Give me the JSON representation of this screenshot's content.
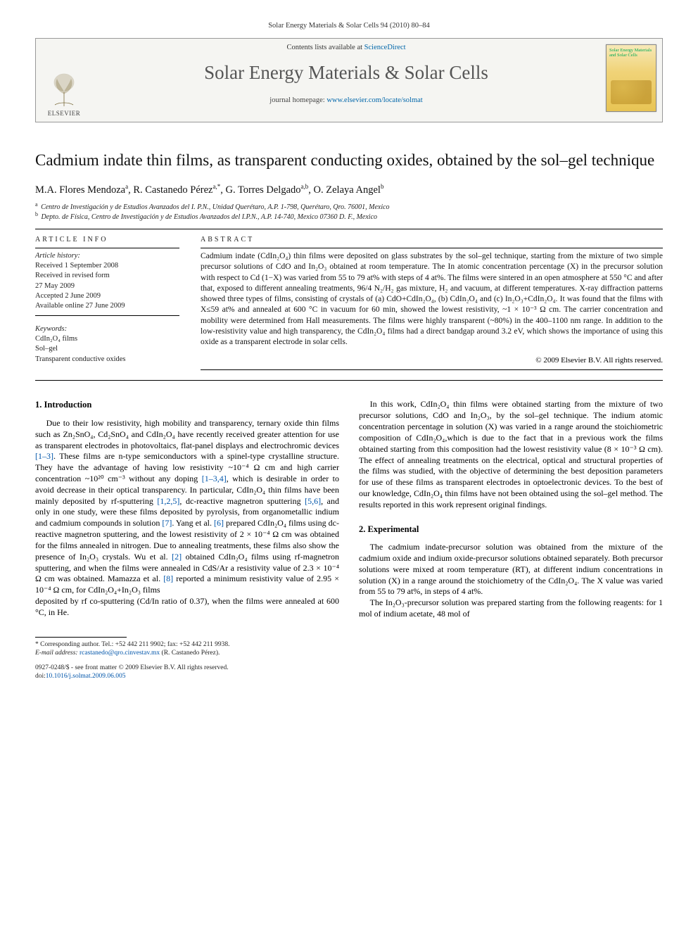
{
  "header": {
    "citation": "Solar Energy Materials & Solar Cells 94 (2010) 80–84",
    "contents_prefix": "Contents lists available at ",
    "contents_link": "ScienceDirect",
    "journal_title": "Solar Energy Materials & Solar Cells",
    "homepage_prefix": "journal homepage: ",
    "homepage_link": "www.elsevier.com/locate/solmat",
    "publisher": "ELSEVIER",
    "cover_text": "Solar Energy Materials and Solar Cells"
  },
  "article": {
    "title": "Cadmium indate thin films, as transparent conducting oxides, obtained by the sol–gel technique",
    "authors_html": "M.A. Flores Mendoza<sup>a</sup>, R. Castanedo Pérez<sup>a,*</sup>, G. Torres Delgado<sup>a,b</sup>, O. Zelaya Angel<sup>b</sup>",
    "affiliations": [
      {
        "sup": "a",
        "text": "Centro de Investigación y de Estudios Avanzados del I. P.N., Unidad Querétaro, A.P. 1-798, Querétaro, Qro. 76001, Mexico"
      },
      {
        "sup": "b",
        "text": "Depto. de Física, Centro de Investigación y de Estudios Avanzados del I.P.N., A.P. 14-740, Mexico 07360 D. F., Mexico"
      }
    ]
  },
  "info": {
    "heading": "ARTICLE INFO",
    "history_label": "Article history:",
    "history": [
      "Received 1 September 2008",
      "Received in revised form",
      "27 May 2009",
      "Accepted 2 June 2009",
      "Available online 27 June 2009"
    ],
    "keywords_label": "Keywords:",
    "keywords": [
      "CdIn₂O₄ films",
      "Sol–gel",
      "Transparent conductive oxides"
    ]
  },
  "abstract": {
    "heading": "ABSTRACT",
    "text": "Cadmium indate (CdIn₂O₄) thin films were deposited on glass substrates by the sol–gel technique, starting from the mixture of two simple precursor solutions of CdO and In₂O₃ obtained at room temperature. The In atomic concentration percentage (X) in the precursor solution with respect to Cd (1−X) was varied from 55 to 79 at% with steps of 4 at%. The films were sintered in an open atmosphere at 550 °C and after that, exposed to different annealing treatments, 96/4 N₂/H₂ gas mixture, H₂ and vacuum, at different temperatures. X-ray diffraction patterns showed three types of films, consisting of crystals of (a) CdO+CdIn₂O₄, (b) CdIn₂O₄ and (c) In₂O₃+CdIn₂O₄. It was found that the films with X≤59 at% and annealed at 600 °C in vacuum for 60 min, showed the lowest resistivity, ~1 × 10⁻³ Ω cm. The carrier concentration and mobility were determined from Hall measurements. The films were highly transparent (~80%) in the 400–1100 nm range. In addition to the low-resistivity value and high transparency, the CdIn₂O₄ films had a direct bandgap around 3.2 eV, which shows the importance of using this oxide as a transparent electrode in solar cells.",
    "copyright": "© 2009 Elsevier B.V. All rights reserved."
  },
  "body": {
    "intro_heading": "1. Introduction",
    "exp_heading": "2. Experimental",
    "intro_p1": "Due to their low resistivity, high mobility and transparency, ternary oxide thin films such as Zn₂SnO₄, Cd₂SnO₄ and CdIn₂O₄ have recently received greater attention for use as transparent electrodes in photovoltaics, flat-panel displays and electrochromic devices [1–3]. These films are n-type semiconductors with a spinel-type crystalline structure. They have the advantage of having low resistivity ~10⁻⁴ Ω cm and high carrier concentration ~10²⁰ cm⁻³ without any doping [1–3,4], which is desirable in order to avoid decrease in their optical transparency. In particular, CdIn₂O₄ thin films have been mainly deposited by rf-sputtering [1,2,5], dc-reactive magnetron sputtering [5,6], and only in one study, were these films deposited by pyrolysis, from organometallic indium and cadmium compounds in solution [7]. Yang et al. [6] prepared CdIn₂O₄ films using dc-reactive magnetron sputtering, and the lowest resistivity of 2 × 10⁻⁴ Ω cm was obtained for the films annealed in nitrogen. Due to annealing treatments, these films also show the presence of In₂O₃ crystals. Wu et al. [2] obtained CdIn₂O₄ films using rf-magnetron sputtering, and when the films were annealed in CdS/Ar a resistivity value of 2.3 × 10⁻⁴ Ω cm was obtained. Mamazza et al. [8] reported a minimum resistivity value of 2.95 × 10⁻⁴ Ω cm, for CdIn₂O₄+In₂O₃ films ",
    "intro_p1b": "deposited by rf co-sputtering (Cd/In ratio of 0.37), when the films were annealed at 600 °C, in He.",
    "intro_p2": "In this work, CdIn₂O₄ thin films were obtained starting from the mixture of two precursor solutions, CdO and In₂O₃, by the sol–gel technique. The indium atomic concentration percentage in solution (X) was varied in a range around the stoichiometric composition of CdIn₂O₄,which is due to the fact that in a previous work the films obtained starting from this composition had the lowest resistivity value (8 × 10⁻³ Ω cm). The effect of annealing treatments on the electrical, optical and structural properties of the films was studied, with the objective of determining the best deposition parameters for use of these films as transparent electrodes in optoelectronic devices. To the best of our knowledge, CdIn₂O₄ thin films have not been obtained using the sol–gel method. The results reported in this work represent original findings.",
    "exp_p1": "The cadmium indate-precursor solution was obtained from the mixture of the cadmium oxide and indium oxide-precursor solutions obtained separately. Both precursor solutions were mixed at room temperature (RT), at different indium concentrations in solution (X) in a range around the stoichiometry of the CdIn₂O₄. The X value was varied from 55 to 79 at%, in steps of 4 at%.",
    "exp_p2": "The In₂O₃-precursor solution was prepared starting from the following reagents: for 1 mol of indium acetate, 48 mol of"
  },
  "footer": {
    "corr": "* Corresponding author. Tel.: +52 442 211 9902; fax: +52 442 211 9938.",
    "email_label": "E-mail address:",
    "email": "rcastanedo@qro.cinvestav.mx",
    "email_who": "(R. Castanedo Pérez).",
    "front_matter": "0927-0248/$ - see front matter © 2009 Elsevier B.V. All rights reserved.",
    "doi_label": "doi:",
    "doi": "10.1016/j.solmat.2009.06.005"
  },
  "colors": {
    "link": "#0055aa",
    "text": "#000000",
    "banner_bg": "#f5f5f2"
  }
}
